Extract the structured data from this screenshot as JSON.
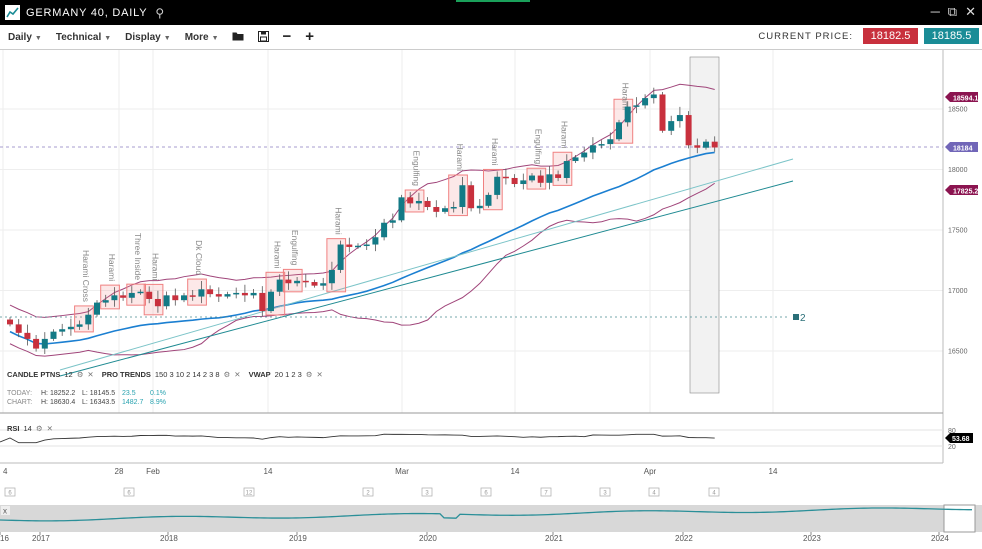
{
  "window": {
    "title": "GERMANY 40, DAILY",
    "search_icon": "search-icon",
    "controls": [
      "minimize-icon",
      "popout-icon",
      "close-icon"
    ]
  },
  "toolbar": {
    "menus": [
      "Daily",
      "Technical",
      "Display",
      "More"
    ],
    "icons": [
      "folder-open-icon",
      "save-icon",
      "zoom-out-icon",
      "zoom-in-icon"
    ],
    "current_price_label": "CURRENT PRICE:",
    "bid": "18182.5",
    "ask": "18185.5"
  },
  "colors": {
    "up": "#137a86",
    "down": "#c8303d",
    "bollinger": "#a0457a",
    "ma": "#1b7fd1",
    "trend": "#2a9aa0",
    "pattern_box": "#f08080"
  },
  "indicators": {
    "candle": {
      "name": "CANDLE PTNS",
      "params": "12"
    },
    "pro": {
      "name": "PRO TRENDS",
      "params": "150 3 10 2 14 2 3 8"
    },
    "vwap": {
      "name": "VWAP",
      "params": "20 1 2 3"
    },
    "rsi": {
      "name": "RSI",
      "params": "14",
      "value": "53.68",
      "levels": [
        "80",
        "20"
      ]
    }
  },
  "stats": {
    "today": {
      "label": "TODAY:",
      "high": "H: 18252.2",
      "low": "L: 18145.5",
      "change": "23.5",
      "pct": "0.1%"
    },
    "chart": {
      "label": "CHART:",
      "high": "H: 18630.4",
      "low": "L: 16343.5",
      "change": "1482.7",
      "pct": "8.9%"
    }
  },
  "price_axis": {
    "ticks": [
      "18500",
      "18000",
      "17500",
      "17000",
      "16500"
    ],
    "badges": {
      "upper_band": "18594.1",
      "current": "18184",
      "lower_band": "17825.2"
    }
  },
  "date_axis": [
    "4",
    "28",
    "Feb",
    "14",
    "Mar",
    "14",
    "Apr",
    "14"
  ],
  "events": [
    "6",
    "6",
    "12",
    "2",
    "3",
    "6",
    "7",
    "3",
    "4",
    "4"
  ],
  "navigator": {
    "years": [
      "16",
      "2017",
      "2018",
      "2019",
      "2020",
      "2021",
      "2022",
      "2023",
      "2024"
    ],
    "close": "x"
  },
  "level_marker": "2",
  "chart_data": {
    "type": "candlestick",
    "instrument": "GERMANY 40",
    "interval": "Daily",
    "closes": [
      16720,
      16650,
      16600,
      16520,
      16600,
      16660,
      16680,
      16700,
      16720,
      16800,
      16900,
      16920,
      16960,
      16940,
      16980,
      16990,
      16930,
      16870,
      16960,
      16920,
      16960,
      16950,
      17010,
      16970,
      16950,
      16970,
      16980,
      16960,
      16980,
      16830,
      16990,
      17090,
      17060,
      17080,
      17070,
      17040,
      17060,
      17170,
      17380,
      17360,
      17370,
      17380,
      17440,
      17560,
      17580,
      17770,
      17720,
      17740,
      17690,
      17650,
      17680,
      17690,
      17870,
      17680,
      17700,
      17790,
      17940,
      17930,
      17880,
      17910,
      17950,
      17890,
      17960,
      17930,
      18070,
      18100,
      18140,
      18200,
      18210,
      18250,
      18390,
      18520,
      18530,
      18590,
      18620,
      18320,
      18400,
      18450,
      18200,
      18180,
      18230,
      18182
    ],
    "patterns": [
      {
        "label": "Harami Cross",
        "bar": 9
      },
      {
        "label": "Harami",
        "bar": 12
      },
      {
        "label": "Three Inside",
        "bar": 15
      },
      {
        "label": "Harami",
        "bar": 17
      },
      {
        "label": "Dk Cloud",
        "bar": 22
      },
      {
        "label": "Harami",
        "bar": 31
      },
      {
        "label": "Engulfing",
        "bar": 33
      },
      {
        "label": "Harami",
        "bar": 38
      },
      {
        "label": "Engulfing",
        "bar": 47
      },
      {
        "label": "Harami",
        "bar": 52
      },
      {
        "label": "Harami",
        "bar": 56
      },
      {
        "label": "Engulfing",
        "bar": 61
      },
      {
        "label": "Harami",
        "bar": 64
      },
      {
        "label": "Harami",
        "bar": 71
      }
    ],
    "ylim": [
      16200,
      18800
    ]
  }
}
